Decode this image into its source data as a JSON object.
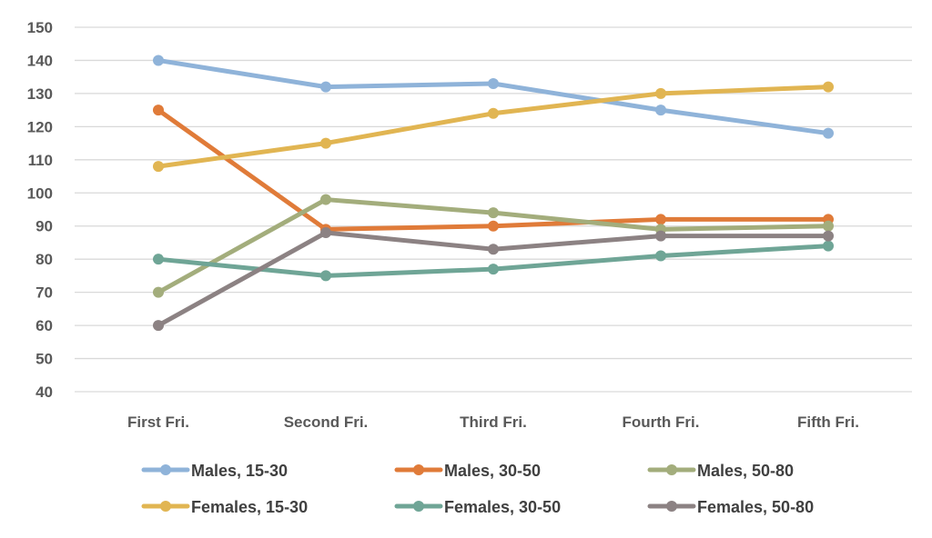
{
  "chart_data": {
    "type": "line",
    "categories": [
      "First Fri.",
      "Second Fri.",
      "Third Fri.",
      "Fourth Fri.",
      "Fifth Fri."
    ],
    "ylim": [
      40,
      150
    ],
    "yticks": [
      40,
      50,
      60,
      70,
      80,
      90,
      100,
      110,
      120,
      130,
      140,
      150
    ],
    "grid": true,
    "legend_position": "bottom",
    "series": [
      {
        "name": "Males, 15-30",
        "color": "#8fb3d9",
        "values": [
          140,
          132,
          133,
          125,
          118
        ]
      },
      {
        "name": "Males, 30-50",
        "color": "#e07b39",
        "values": [
          125,
          89,
          90,
          92,
          92
        ]
      },
      {
        "name": "Males, 50-80",
        "color": "#a3ad7c",
        "values": [
          70,
          98,
          94,
          89,
          90
        ]
      },
      {
        "name": "Females, 15-30",
        "color": "#e1b552",
        "values": [
          108,
          115,
          124,
          130,
          132
        ]
      },
      {
        "name": "Females, 30-50",
        "color": "#6fa596",
        "values": [
          80,
          75,
          77,
          81,
          84
        ]
      },
      {
        "name": "Females, 50-80",
        "color": "#8c8283",
        "values": [
          60,
          88,
          83,
          87,
          87
        ]
      }
    ]
  }
}
